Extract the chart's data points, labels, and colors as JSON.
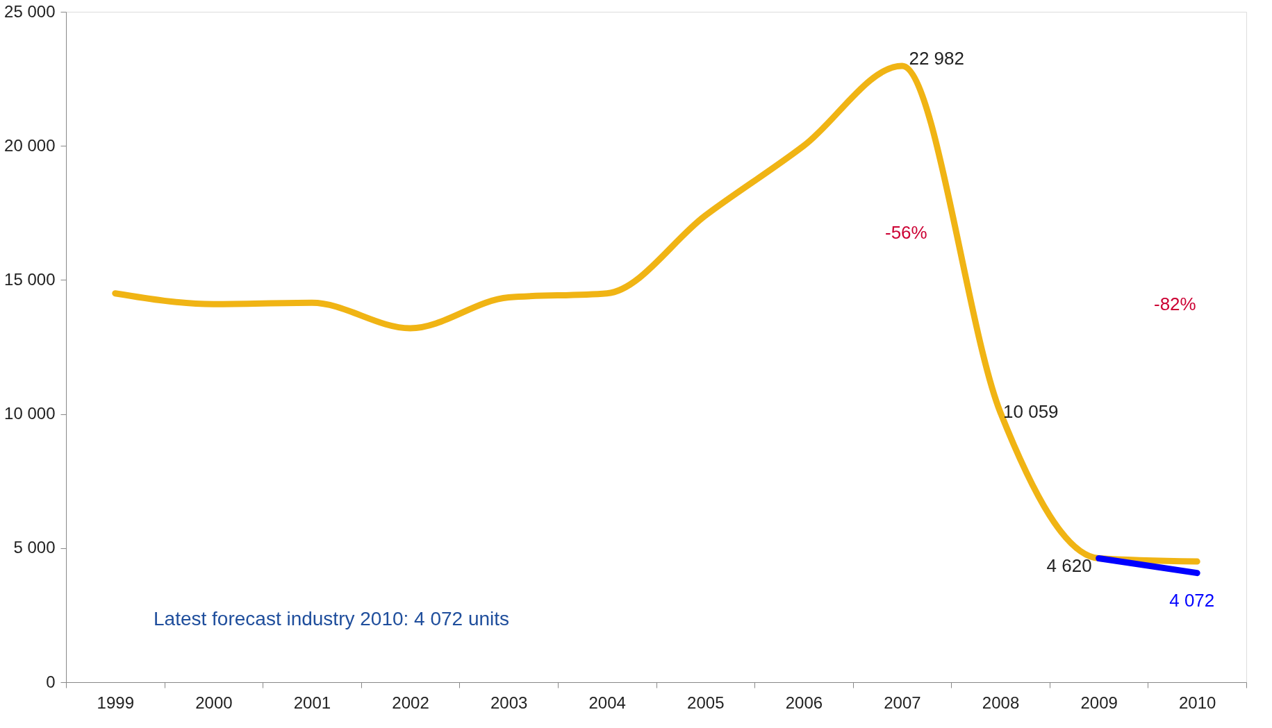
{
  "chart_data": {
    "type": "line",
    "categories": [
      "1999",
      "2000",
      "2001",
      "2002",
      "2003",
      "2004",
      "2005",
      "2006",
      "2007",
      "2008",
      "2009",
      "2010"
    ],
    "series": [
      {
        "color": "#f0b414",
        "values": [
          14500,
          14100,
          14150,
          13200,
          14350,
          14500,
          17400,
          20000,
          22982,
          10059,
          4620,
          4500
        ]
      },
      {
        "color": "#0000ff",
        "values": [
          null,
          null,
          null,
          null,
          null,
          null,
          null,
          null,
          null,
          null,
          4620,
          4072
        ]
      }
    ],
    "ylim": [
      0,
      25000
    ],
    "yticks": [
      {
        "value": 0,
        "label": "0"
      },
      {
        "value": 5000,
        "label": "5 000"
      },
      {
        "value": 10000,
        "label": "10 000"
      },
      {
        "value": 15000,
        "label": "15 000"
      },
      {
        "value": 20000,
        "label": "20 000"
      },
      {
        "value": 25000,
        "label": "25 000"
      }
    ],
    "grid": false,
    "marker": "none",
    "line_style": "solid",
    "annotations": [
      {
        "text": "22 982",
        "x": "2007",
        "y": 22982
      },
      {
        "text": "10 059",
        "x": "2008",
        "y": 10059
      },
      {
        "text": "4 620",
        "x": "2009",
        "y": 4620
      },
      {
        "text": "4 072",
        "x": "2010",
        "y": 4072
      },
      "-56%",
      "-82%",
      "Latest forecast industry 2010: 4 072 units"
    ]
  }
}
